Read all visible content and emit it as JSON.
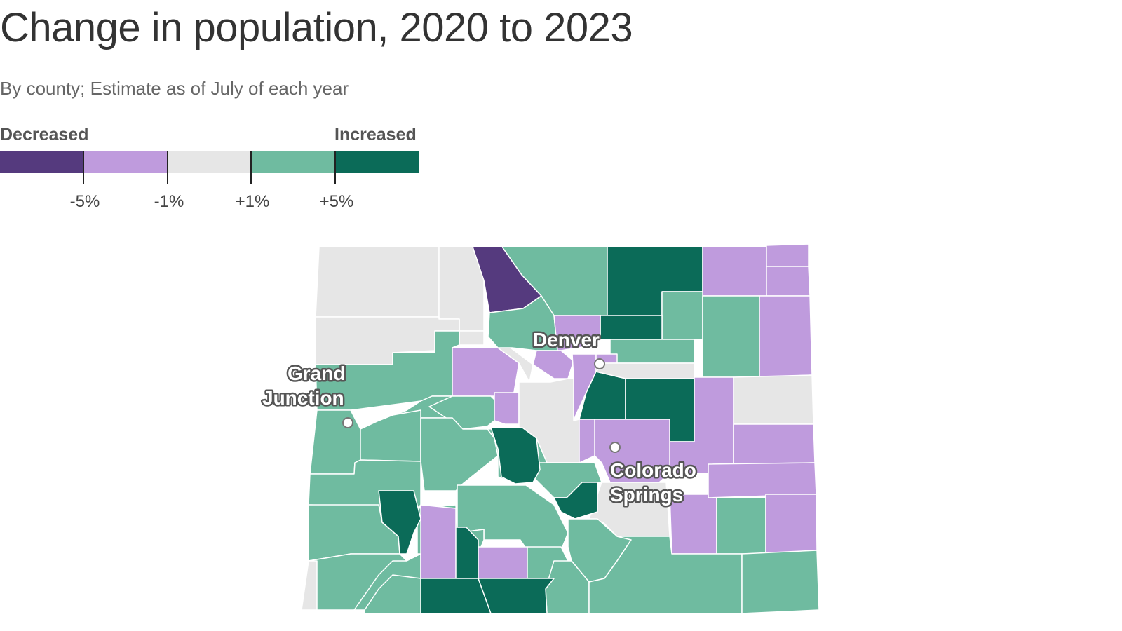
{
  "title": "Change in population, 2020 to 2023",
  "subtitle": "By county; Estimate as of July of each year",
  "legend": {
    "low_label": "Decreased",
    "high_label": "Increased",
    "bins": [
      {
        "color": "#553a7e"
      },
      {
        "color": "#bf9bdd"
      },
      {
        "color": "#e6e6e6"
      },
      {
        "color": "#6fbba0"
      },
      {
        "color": "#0b6b58"
      }
    ],
    "ticks": [
      "-5%",
      "-1%",
      "+1%",
      "+5%"
    ]
  },
  "cities": [
    {
      "name_lines": [
        "Denver"
      ]
    },
    {
      "name_lines": [
        "Grand",
        "Junction"
      ]
    },
    {
      "name_lines": [
        "Colorado",
        "Springs"
      ]
    }
  ],
  "counties": [
    {
      "bin": 2
    },
    {
      "bin": 2
    },
    {
      "bin": 0
    },
    {
      "bin": 3
    },
    {
      "bin": 4
    },
    {
      "bin": 1
    },
    {
      "bin": 1
    },
    {
      "bin": 1
    },
    {
      "bin": 2
    },
    {
      "bin": 2
    },
    {
      "bin": 3
    },
    {
      "bin": 1
    },
    {
      "bin": 2
    },
    {
      "bin": 3
    },
    {
      "bin": 3
    },
    {
      "bin": 4
    },
    {
      "bin": 3
    },
    {
      "bin": 1
    },
    {
      "bin": 3
    },
    {
      "bin": 1
    },
    {
      "bin": 1
    },
    {
      "bin": 1
    },
    {
      "bin": 1
    },
    {
      "bin": 4
    },
    {
      "bin": 4
    },
    {
      "bin": 2
    },
    {
      "bin": 1
    },
    {
      "bin": 2
    },
    {
      "bin": 3
    },
    {
      "bin": 3
    },
    {
      "bin": 3
    },
    {
      "bin": 1
    },
    {
      "bin": 2
    },
    {
      "bin": 1
    },
    {
      "bin": 1
    },
    {
      "bin": 3
    },
    {
      "bin": 3
    },
    {
      "bin": 3
    },
    {
      "bin": 3
    },
    {
      "bin": 4
    },
    {
      "bin": 3
    },
    {
      "bin": 3
    },
    {
      "bin": 3
    },
    {
      "bin": 3
    },
    {
      "bin": 3
    },
    {
      "bin": 4
    },
    {
      "bin": 2
    },
    {
      "bin": 1
    },
    {
      "bin": 3
    },
    {
      "bin": 1
    },
    {
      "bin": 1
    },
    {
      "bin": 4
    },
    {
      "bin": 1
    },
    {
      "bin": 4
    },
    {
      "bin": 1
    },
    {
      "bin": 4
    },
    {
      "bin": 1
    },
    {
      "bin": 3
    },
    {
      "bin": 3
    },
    {
      "bin": 3
    },
    {
      "bin": 3
    },
    {
      "bin": 4
    },
    {
      "bin": 2
    },
    {
      "bin": 3
    },
    {
      "bin": 3
    },
    {
      "bin": 2
    },
    {
      "bin": 1
    }
  ]
}
